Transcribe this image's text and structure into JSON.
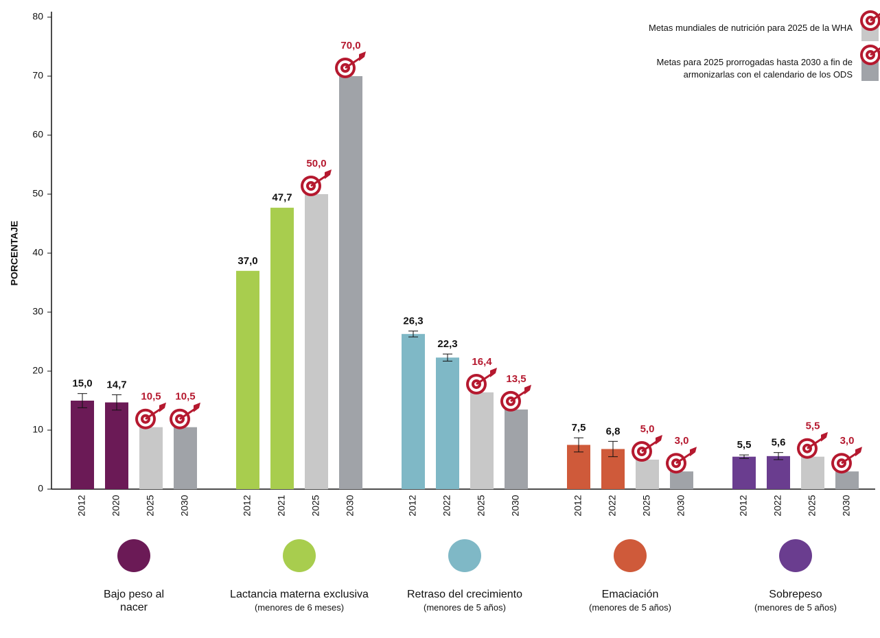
{
  "chart_data": {
    "type": "bar",
    "ylabel": "PORCENTAJE",
    "ylim": [
      0,
      80
    ],
    "yticks": [
      0,
      10,
      20,
      30,
      40,
      50,
      60,
      70,
      80
    ],
    "legend": [
      {
        "label": "Metas mundiales de nutrición para 2025 de la WHA",
        "color": "#c8c8c8"
      },
      {
        "label": "Metas para 2025 prorrogadas hasta 2030 a fin de armonizarlas con el calendario de los ODS",
        "color": "#a0a3a8"
      }
    ],
    "groups": [
      {
        "name": "Bajo peso al nacer",
        "categories": [
          "2012",
          "2020",
          "2025",
          "2030"
        ],
        "values": [
          15.0,
          14.7,
          10.5,
          10.5
        ],
        "value_labels": [
          "15,0",
          "14,7",
          "10,5",
          "10,5"
        ],
        "errors": [
          1.2,
          1.3,
          null,
          null
        ],
        "colors": [
          "#6b1a56",
          "#6b1a56",
          "#c8c8c8",
          "#a0a3a8"
        ]
      },
      {
        "name": "Lactancia materna exclusiva",
        "subtitle": "(menores de 6 meses)",
        "categories": [
          "2012",
          "2021",
          "2025",
          "2030"
        ],
        "values": [
          37.0,
          47.7,
          50.0,
          70.0
        ],
        "value_labels": [
          "37,0",
          "47,7",
          "50,0",
          "70,0"
        ],
        "errors": [
          null,
          null,
          null,
          null
        ],
        "colors": [
          "#a8cd4e",
          "#a8cd4e",
          "#c8c8c8",
          "#a0a3a8"
        ]
      },
      {
        "name": "Retraso del crecimiento",
        "subtitle": "(menores de 5 años)",
        "categories": [
          "2012",
          "2022",
          "2025",
          "2030"
        ],
        "values": [
          26.3,
          22.3,
          16.4,
          13.5
        ],
        "value_labels": [
          "26,3",
          "22,3",
          "16,4",
          "13,5"
        ],
        "errors": [
          0.5,
          0.6,
          null,
          null
        ],
        "colors": [
          "#7fb8c6",
          "#7fb8c6",
          "#c8c8c8",
          "#a0a3a8"
        ]
      },
      {
        "name": "Emaciación",
        "subtitle": "(menores de 5 años)",
        "categories": [
          "2012",
          "2022",
          "2025",
          "2030"
        ],
        "values": [
          7.5,
          6.8,
          5.0,
          3.0
        ],
        "value_labels": [
          "7,5",
          "6,8",
          "5,0",
          "3,0"
        ],
        "errors": [
          1.2,
          1.3,
          null,
          null
        ],
        "colors": [
          "#cf5a3a",
          "#cf5a3a",
          "#c8c8c8",
          "#a0a3a8"
        ]
      },
      {
        "name": "Sobrepeso",
        "subtitle": "(menores de 5 años)",
        "categories": [
          "2012",
          "2022",
          "2025",
          "2030"
        ],
        "values": [
          5.5,
          5.6,
          5.5,
          3.0
        ],
        "value_labels": [
          "5,5",
          "5,6",
          "5,5",
          "3,0"
        ],
        "errors": [
          0.3,
          0.6,
          null,
          null
        ],
        "colors": [
          "#6a3d8f",
          "#6a3d8f",
          "#c8c8c8",
          "#a0a3a8"
        ]
      }
    ]
  }
}
